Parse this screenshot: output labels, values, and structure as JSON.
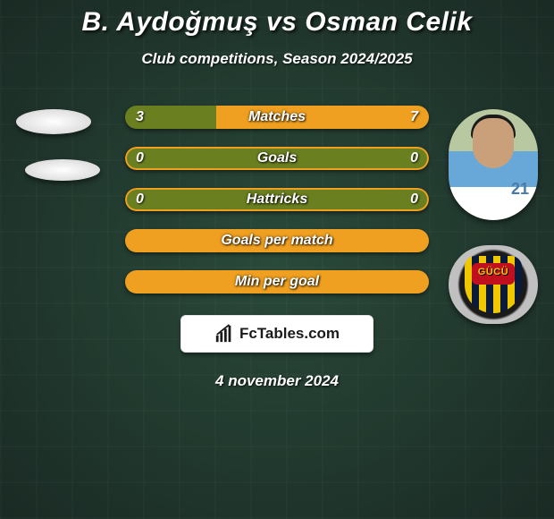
{
  "title": "B. Aydoğmuş vs Osman Celik",
  "subtitle": "Club competitions, Season 2024/2025",
  "date": "4 november 2024",
  "watermark": "FcTables.com",
  "colors": {
    "bar_bg": "#6a8020",
    "bar_fill": "#f0a020",
    "bar_border": "#f0a020"
  },
  "player_right": {
    "jersey_number": "21"
  },
  "club_right": {
    "badge_text": "GÜCÜ"
  },
  "rows": [
    {
      "label": "Matches",
      "left": "3",
      "right": "7",
      "left_num": 3,
      "right_num": 7,
      "has_values": true
    },
    {
      "label": "Goals",
      "left": "0",
      "right": "0",
      "left_num": 0,
      "right_num": 0,
      "has_values": true
    },
    {
      "label": "Hattricks",
      "left": "0",
      "right": "0",
      "left_num": 0,
      "right_num": 0,
      "has_values": true
    },
    {
      "label": "Goals per match",
      "has_values": false
    },
    {
      "label": "Min per goal",
      "has_values": false
    }
  ]
}
